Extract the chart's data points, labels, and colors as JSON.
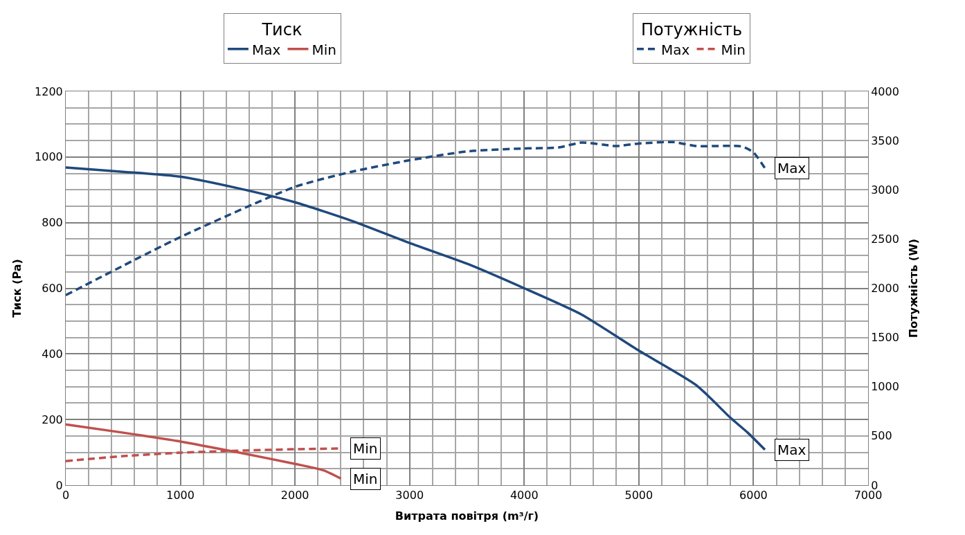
{
  "chart_data": {
    "type": "line",
    "xlabel": "Витрата повітря (m³/г)",
    "ylabel": "Тиск (Pa)",
    "y2label": "Потужність (W)",
    "legend_title": [
      "Тиск",
      "Потужність"
    ],
    "legend": "top",
    "grid": true,
    "marker": "none",
    "xlim": [
      0,
      7000
    ],
    "xticks": [
      0,
      1000,
      2000,
      3000,
      4000,
      5000,
      6000,
      7000
    ],
    "ylim": [
      0,
      1200
    ],
    "yticks": [
      0,
      200,
      400,
      600,
      800,
      1000,
      1200
    ],
    "y2lim": [
      0,
      4000
    ],
    "y2ticks": [
      0,
      500,
      1000,
      1500,
      2000,
      2500,
      3000,
      3500,
      4000
    ],
    "series": [
      {
        "name": "Max",
        "color": "#1f497d",
        "line_style": "solid",
        "x": [
          0,
          500,
          1000,
          1500,
          2000,
          2500,
          3000,
          3500,
          4000,
          4500,
          5000,
          5500,
          5800,
          5950,
          6100
        ],
        "values": [
          968,
          955,
          940,
          905,
          862,
          805,
          738,
          675,
          600,
          520,
          410,
          305,
          205,
          160,
          108
        ]
      },
      {
        "name": "Min",
        "color": "#c0504d",
        "line_style": "solid",
        "x": [
          0,
          500,
          1000,
          1500,
          2000,
          2250,
          2400
        ],
        "values": [
          185,
          160,
          133,
          100,
          65,
          45,
          20
        ]
      },
      {
        "name": "Max",
        "color": "#1f497d",
        "line_style": "dashed",
        "axis": "y2",
        "x": [
          0,
          1000,
          2000,
          2500,
          3000,
          3500,
          4000,
          4300,
          4500,
          4800,
          5000,
          5300,
          5500,
          5900,
          6000,
          6100
        ],
        "values": [
          1930,
          2520,
          3030,
          3185,
          3300,
          3390,
          3420,
          3430,
          3480,
          3445,
          3470,
          3485,
          3445,
          3440,
          3380,
          3220
        ]
      },
      {
        "name": "Min",
        "color": "#c0504d",
        "line_style": "dashed",
        "axis": "y2",
        "x": [
          0,
          500,
          1000,
          1500,
          2000,
          2400
        ],
        "values": [
          245,
          295,
          330,
          350,
          365,
          373
        ]
      }
    ],
    "annotations": [
      "Max",
      "Min",
      "Max",
      "Min"
    ]
  }
}
